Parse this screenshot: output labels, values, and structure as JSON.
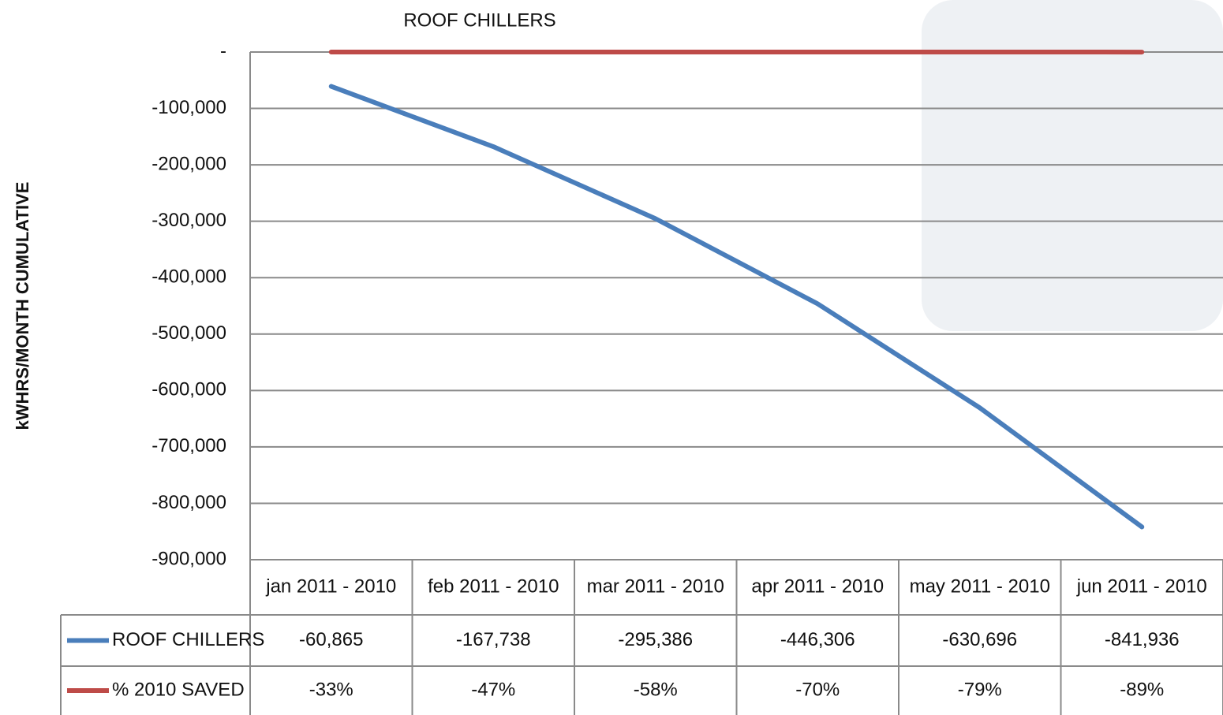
{
  "chart_data": {
    "type": "line",
    "title": "ROOF CHILLERS",
    "y_label": "kWHRS/MONTH CUMULATIVE",
    "categories": [
      "jan 2011 - 2010",
      "feb 2011 - 2010",
      "mar 2011 - 2010",
      "apr 2011 - 2010",
      "may 2011 - 2010",
      "jun 2011 - 2010"
    ],
    "series": [
      {
        "name": "ROOF CHILLERS",
        "color": "#4a7ebb",
        "values": [
          -60865,
          -167738,
          -295386,
          -446306,
          -630696,
          -841936
        ],
        "value_labels": [
          "-60,865",
          "-167,738",
          "-295,386",
          "-446,306",
          "-630,696",
          "-841,936"
        ]
      },
      {
        "name": "% 2010 SAVED",
        "color": "#be4b48",
        "values": [
          -33,
          -47,
          -58,
          -70,
          -79,
          -89
        ],
        "value_labels": [
          "-33%",
          "-47%",
          "-58%",
          "-70%",
          "-79%",
          "-89%"
        ]
      }
    ],
    "ylim": [
      -900000,
      0
    ],
    "yticks": [
      {
        "value": 0,
        "label": "-"
      },
      {
        "value": -100000,
        "label": "-100,000"
      },
      {
        "value": -200000,
        "label": "-200,000"
      },
      {
        "value": -300000,
        "label": "-300,000"
      },
      {
        "value": -400000,
        "label": "-400,000"
      },
      {
        "value": -500000,
        "label": "-500,000"
      },
      {
        "value": -600000,
        "label": "-600,000"
      },
      {
        "value": -700000,
        "label": "-700,000"
      },
      {
        "value": -800000,
        "label": "-800,000"
      },
      {
        "value": -900000,
        "label": "-900,000"
      }
    ],
    "grid": true
  }
}
